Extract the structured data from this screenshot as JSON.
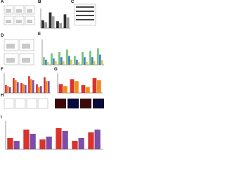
{
  "panels": [
    {
      "label": "A"
    },
    {
      "label": "B",
      "ylim": [
        0,
        100
      ],
      "bars": [
        {
          "color": "#2b2b2b",
          "values": [
            40,
            80,
            35,
            70
          ]
        },
        {
          "color": "#9e9e9e",
          "values": [
            30,
            60,
            25,
            55
          ]
        }
      ]
    },
    {
      "label": "C"
    },
    {
      "label": "D"
    },
    {
      "label": "E",
      "ylim": [
        0,
        100
      ],
      "bars": [
        {
          "color": "#6fc36f",
          "values": [
            30,
            45,
            50,
            60,
            35,
            50,
            55,
            65
          ]
        },
        {
          "color": "#3f7fd1",
          "values": [
            20,
            25,
            30,
            35,
            20,
            30,
            30,
            40
          ]
        },
        {
          "color": "#e8c63a",
          "values": [
            10,
            15,
            15,
            20,
            10,
            12,
            15,
            18
          ]
        }
      ]
    },
    {
      "label": "F",
      "ylim": [
        0,
        100
      ],
      "bars": [
        {
          "color": "#d9332b",
          "values": [
            40,
            75,
            50,
            85,
            45,
            80
          ]
        },
        {
          "color": "#f08c1e",
          "values": [
            35,
            65,
            45,
            70,
            30,
            60
          ]
        },
        {
          "color": "#7b4fa8",
          "values": [
            30,
            55,
            40,
            65,
            35,
            60
          ]
        }
      ]
    },
    {
      "label": "G",
      "ylim": [
        0,
        100
      ],
      "bars": [
        {
          "color": "#d9332b",
          "values": [
            45,
            70,
            40,
            75
          ]
        },
        {
          "color": "#f08c1e",
          "values": [
            35,
            60,
            30,
            65
          ]
        }
      ]
    },
    {
      "label": "H"
    },
    {
      "label": "I",
      "ylim": [
        0,
        100
      ],
      "bars": [
        {
          "color": "#d9332b",
          "values": [
            40,
            70,
            35,
            75,
            30,
            60
          ]
        },
        {
          "color": "#7b4fa8",
          "values": [
            30,
            55,
            45,
            65,
            40,
            70
          ]
        }
      ]
    }
  ]
}
